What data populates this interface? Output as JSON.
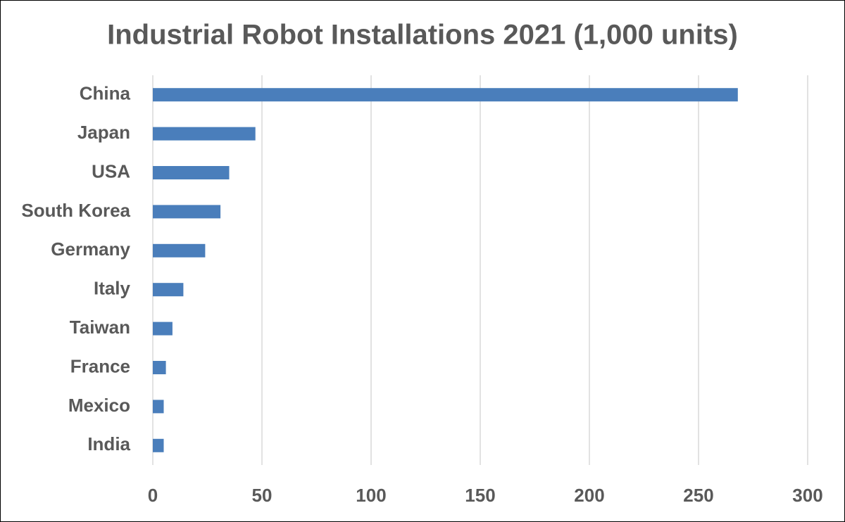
{
  "chart_data": {
    "type": "barh",
    "title": "Industrial Robot Installations 2021 (1,000 units)",
    "categories": [
      "China",
      "Japan",
      "USA",
      "South Korea",
      "Germany",
      "Italy",
      "Taiwan",
      "France",
      "Mexico",
      "India"
    ],
    "values": [
      268,
      47,
      35,
      31,
      24,
      14,
      9,
      6,
      5,
      5
    ],
    "color": "#4a7ebb",
    "xlim": [
      0,
      300
    ],
    "xticks": [
      0,
      50,
      100,
      150,
      200,
      250,
      300
    ],
    "grid": true
  }
}
